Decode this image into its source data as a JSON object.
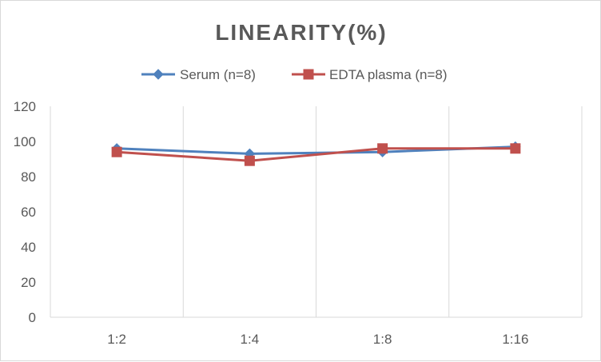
{
  "chart_data": {
    "type": "line",
    "title": "LINEARITY(%)",
    "categories": [
      "1:2",
      "1:4",
      "1:8",
      "1:16"
    ],
    "series": [
      {
        "name": "Serum (n=8)",
        "values": [
          96,
          93,
          94,
          97
        ],
        "color": "#4f81bd",
        "marker": "diamond"
      },
      {
        "name": "EDTA plasma (n=8)",
        "values": [
          94,
          89,
          96,
          96
        ],
        "color": "#c0504d",
        "marker": "square"
      }
    ],
    "ylim": [
      0,
      120
    ],
    "yticks": [
      0,
      20,
      40,
      60,
      80,
      100,
      120
    ],
    "xlabel": "",
    "ylabel": "",
    "legend_position": "top",
    "grid": "vertical",
    "gridline_color": "#d9d9d9",
    "axis_text_color": "#595959"
  }
}
